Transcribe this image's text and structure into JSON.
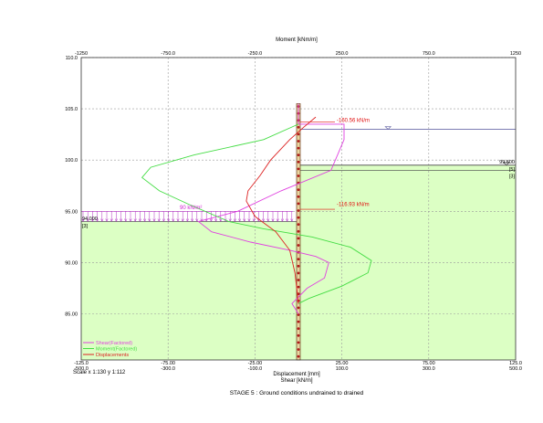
{
  "chart_data": {
    "type": "line",
    "top_axis": {
      "title": "Moment [kNm/m]",
      "ticks": [
        "-1250",
        "-750.0",
        "-250.0",
        "250.0",
        "750.0",
        "1250"
      ],
      "range": [
        -1250,
        1250
      ]
    },
    "left_axis": {
      "ticks": [
        "85.00",
        "90.00",
        "95.00",
        "100.0",
        "105.0",
        "110.0"
      ],
      "range": [
        80.5,
        110.0
      ]
    },
    "bottom_axes": [
      {
        "ticks": [
          "-125.0",
          "-75.00",
          "-25.00",
          "25.00",
          "75.00",
          "125.0"
        ],
        "range": [
          -125,
          125
        ]
      },
      {
        "title": "Displacement [mm]",
        "ticks": [
          "-500.0",
          "-300.0",
          "-100.0",
          "100.0",
          "300.0",
          "500.0"
        ],
        "range": [
          -500,
          500
        ]
      },
      {
        "title": "Shear [kN/m]",
        "range": [
          -500,
          500
        ]
      }
    ],
    "scale_text": "Scale x 1:130  y 1:112",
    "caption": "STAGE 5 : Ground conditions undrained to drained",
    "grid": true,
    "soil": {
      "right_surface": 99.5,
      "left_surface": 94.0,
      "color": "#dcffc4"
    },
    "water_level": 103.0,
    "wall": {
      "top": 105.5,
      "bottom": 80.5
    },
    "labels": [
      {
        "text": "94.000",
        "color": "#000000"
      },
      {
        "text": "[3]",
        "color": "#000000"
      },
      {
        "text": "99.500",
        "color": "#000000"
      },
      {
        "text": "[5]",
        "color": "#000000"
      },
      {
        "text": "[3]",
        "color": "#000000"
      },
      {
        "text": "-160.56 kN/m",
        "color": "#e01010"
      },
      {
        "text": "-116.93 kN/m",
        "color": "#e01010"
      },
      {
        "text": "90 kN/m²",
        "color": "#d020d0"
      }
    ],
    "series": [
      {
        "name": "Shear(Factored)",
        "color": "#e040e0",
        "axis": "shear",
        "points": [
          [
            0,
            105.5
          ],
          [
            0,
            103.5
          ],
          [
            105,
            103.5
          ],
          [
            105,
            102
          ],
          [
            75,
            99
          ],
          [
            -40,
            97
          ],
          [
            -140,
            95
          ],
          [
            -230,
            94
          ],
          [
            -200,
            93
          ],
          [
            -110,
            92
          ],
          [
            -20,
            91.2
          ],
          [
            40,
            90.6
          ],
          [
            70,
            90
          ],
          [
            60,
            88.5
          ],
          [
            20,
            87.5
          ],
          [
            -15,
            86
          ],
          [
            0,
            85
          ]
        ]
      },
      {
        "name": "Moment(Factored)",
        "color": "#44dd44",
        "axis": "moment",
        "points": [
          [
            0,
            103.5
          ],
          [
            -200,
            102
          ],
          [
            -600,
            100.5
          ],
          [
            -850,
            99.3
          ],
          [
            -900,
            98.3
          ],
          [
            -800,
            97
          ],
          [
            -620,
            95.6
          ],
          [
            -400,
            94
          ],
          [
            -200,
            93.3
          ],
          [
            80,
            92.5
          ],
          [
            300,
            91.5
          ],
          [
            420,
            90.2
          ],
          [
            400,
            89
          ],
          [
            250,
            87.7
          ],
          [
            60,
            86.5
          ],
          [
            0,
            86
          ]
        ]
      },
      {
        "name": "Displacements",
        "color": "#dd2222",
        "axis": "displacement",
        "points": [
          [
            10,
            104.2
          ],
          [
            3,
            103.2
          ],
          [
            -5,
            102
          ],
          [
            -16,
            100
          ],
          [
            -22,
            98.5
          ],
          [
            -29,
            97
          ],
          [
            -30,
            96
          ],
          [
            -25,
            94.5
          ],
          [
            -13,
            93
          ],
          [
            -5,
            91.2
          ],
          [
            -2,
            89
          ],
          [
            -1,
            87.5
          ],
          [
            0,
            86
          ]
        ]
      }
    ]
  }
}
